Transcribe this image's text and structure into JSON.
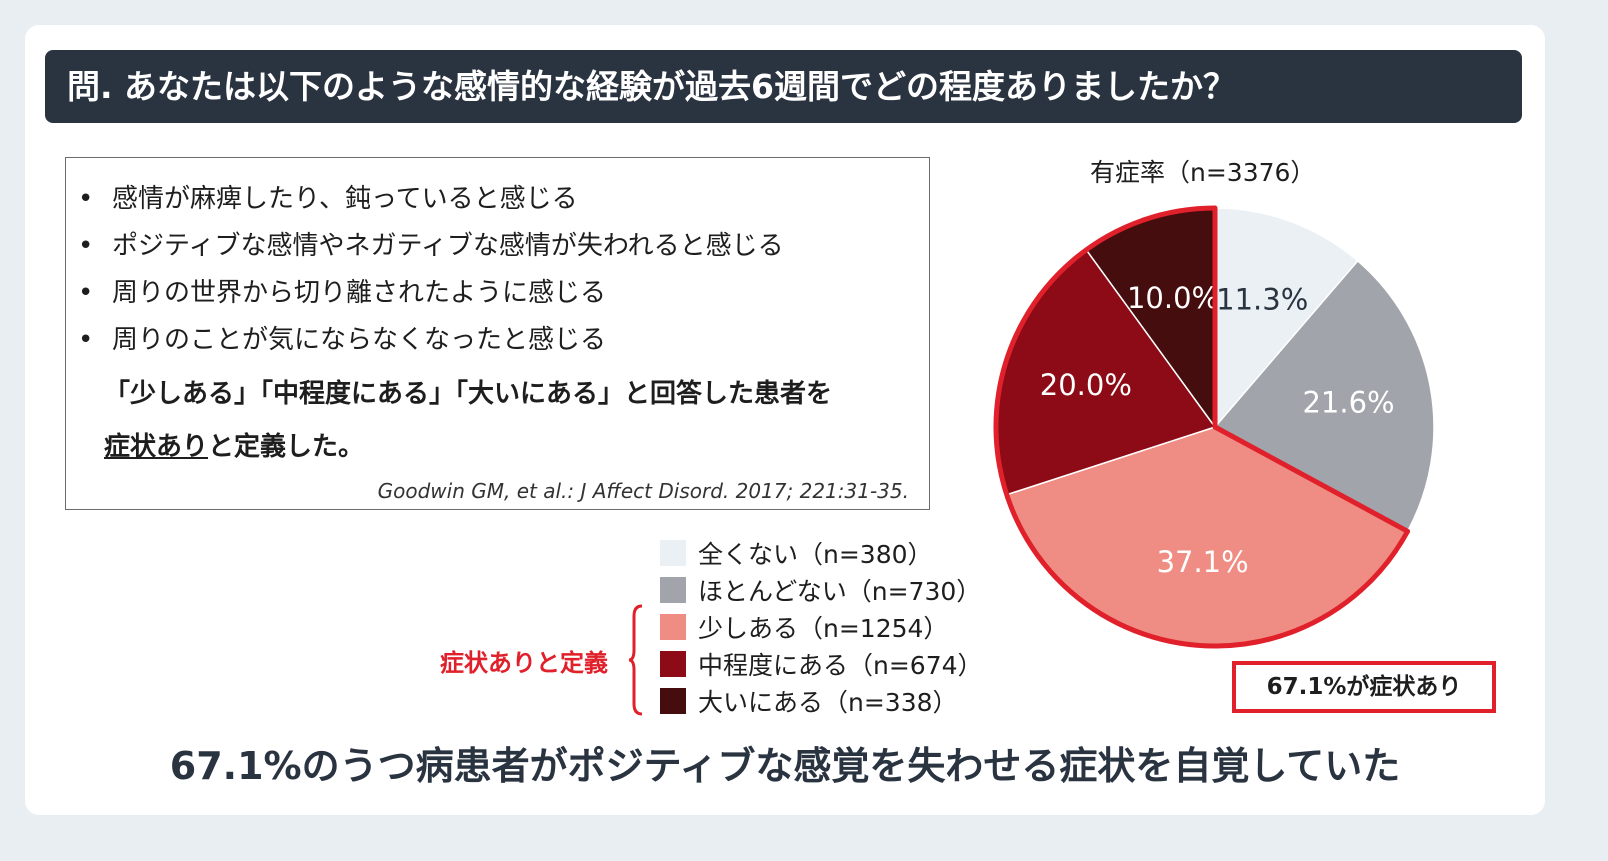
{
  "title": "問. あなたは以下のような感情的な経験が過去6週間でどの程度ありましたか？",
  "criteria": {
    "items": [
      "感情が麻痺したり、鈍っていると感じる",
      "ポジティブな感情やネガティブな感情が失われると感じる",
      "周りの世界から切り離されたように感じる",
      "周りのことが気にならなくなったと感じる"
    ],
    "definition_line1": "「少しある」「中程度にある」「大いにある」と回答した患者を",
    "definition_underlined": "症状あり",
    "definition_rest": "と定義した。",
    "citation": "Goodwin GM, et al.: J Affect Disord. 2017; 221:31-35."
  },
  "bracket_label": "症状ありと定義",
  "callout": "67.1%が症状あり",
  "conclusion": "67.1%のうつ病患者がポジティブな感覚を失わせる症状を自覚していた",
  "chart_data": {
    "type": "pie",
    "title": "有症率（n=3376）",
    "start": "top",
    "direction": "clockwise",
    "highlight_color": "#e0202a",
    "highlighted_categories": [
      "少しある",
      "中程度にある",
      "大いにある"
    ],
    "slices": [
      {
        "category": "全くない",
        "n_label": "（n=380）",
        "value": 11.3,
        "label": "11.3%",
        "color": "#eaf0f3",
        "text_color": "#2a3340"
      },
      {
        "category": "ほとんどない",
        "n_label": "（n=730）",
        "value": 21.6,
        "label": "21.6%",
        "color": "#a1a4aa",
        "text_color": "#ffffff"
      },
      {
        "category": "少しある",
        "n_label": "（n=1254）",
        "value": 37.1,
        "label": "37.1%",
        "color": "#ef8d84",
        "text_color": "#ffffff"
      },
      {
        "category": "中程度にある",
        "n_label": "（n=674）",
        "value": 20.0,
        "label": "20.0%",
        "color": "#8c0b16",
        "text_color": "#ffffff"
      },
      {
        "category": "大いにある",
        "n_label": "（n=338）",
        "value": 10.0,
        "label": "10.0%",
        "color": "#450d0e",
        "text_color": "#ffffff"
      }
    ]
  }
}
